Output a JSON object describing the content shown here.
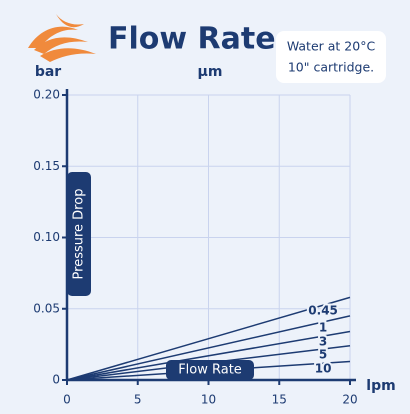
{
  "chart_data": {
    "type": "line",
    "title": "Flow Rate",
    "note": [
      "Water at 20°C",
      "10\" cartridge."
    ],
    "y_unit": "bar",
    "series_unit": "µm",
    "x_unit": "lpm",
    "ylabel": "Pressure Drop",
    "xlabel": "Flow Rate",
    "x": [
      0,
      20
    ],
    "series": [
      {
        "name": "0.45",
        "color": "#1d3b72",
        "values": [
          0,
          0.058
        ]
      },
      {
        "name": "1",
        "color": "#1d3b72",
        "values": [
          0,
          0.045
        ]
      },
      {
        "name": "3",
        "color": "#1d3b72",
        "values": [
          0,
          0.034
        ]
      },
      {
        "name": "5",
        "color": "#1d3b72",
        "values": [
          0,
          0.024
        ]
      },
      {
        "name": "10",
        "color": "#1d3b72",
        "values": [
          0,
          0.013
        ]
      }
    ],
    "xlim": [
      0,
      20
    ],
    "xticks": [
      0,
      5,
      10,
      15,
      20
    ],
    "ylim": [
      0,
      0.2
    ],
    "yticks": [
      0,
      0.05,
      {
        "value": 0.1,
        "label": "0.10"
      },
      0.15,
      {
        "value": 0.2,
        "label": "0.20"
      }
    ],
    "grid": true
  }
}
